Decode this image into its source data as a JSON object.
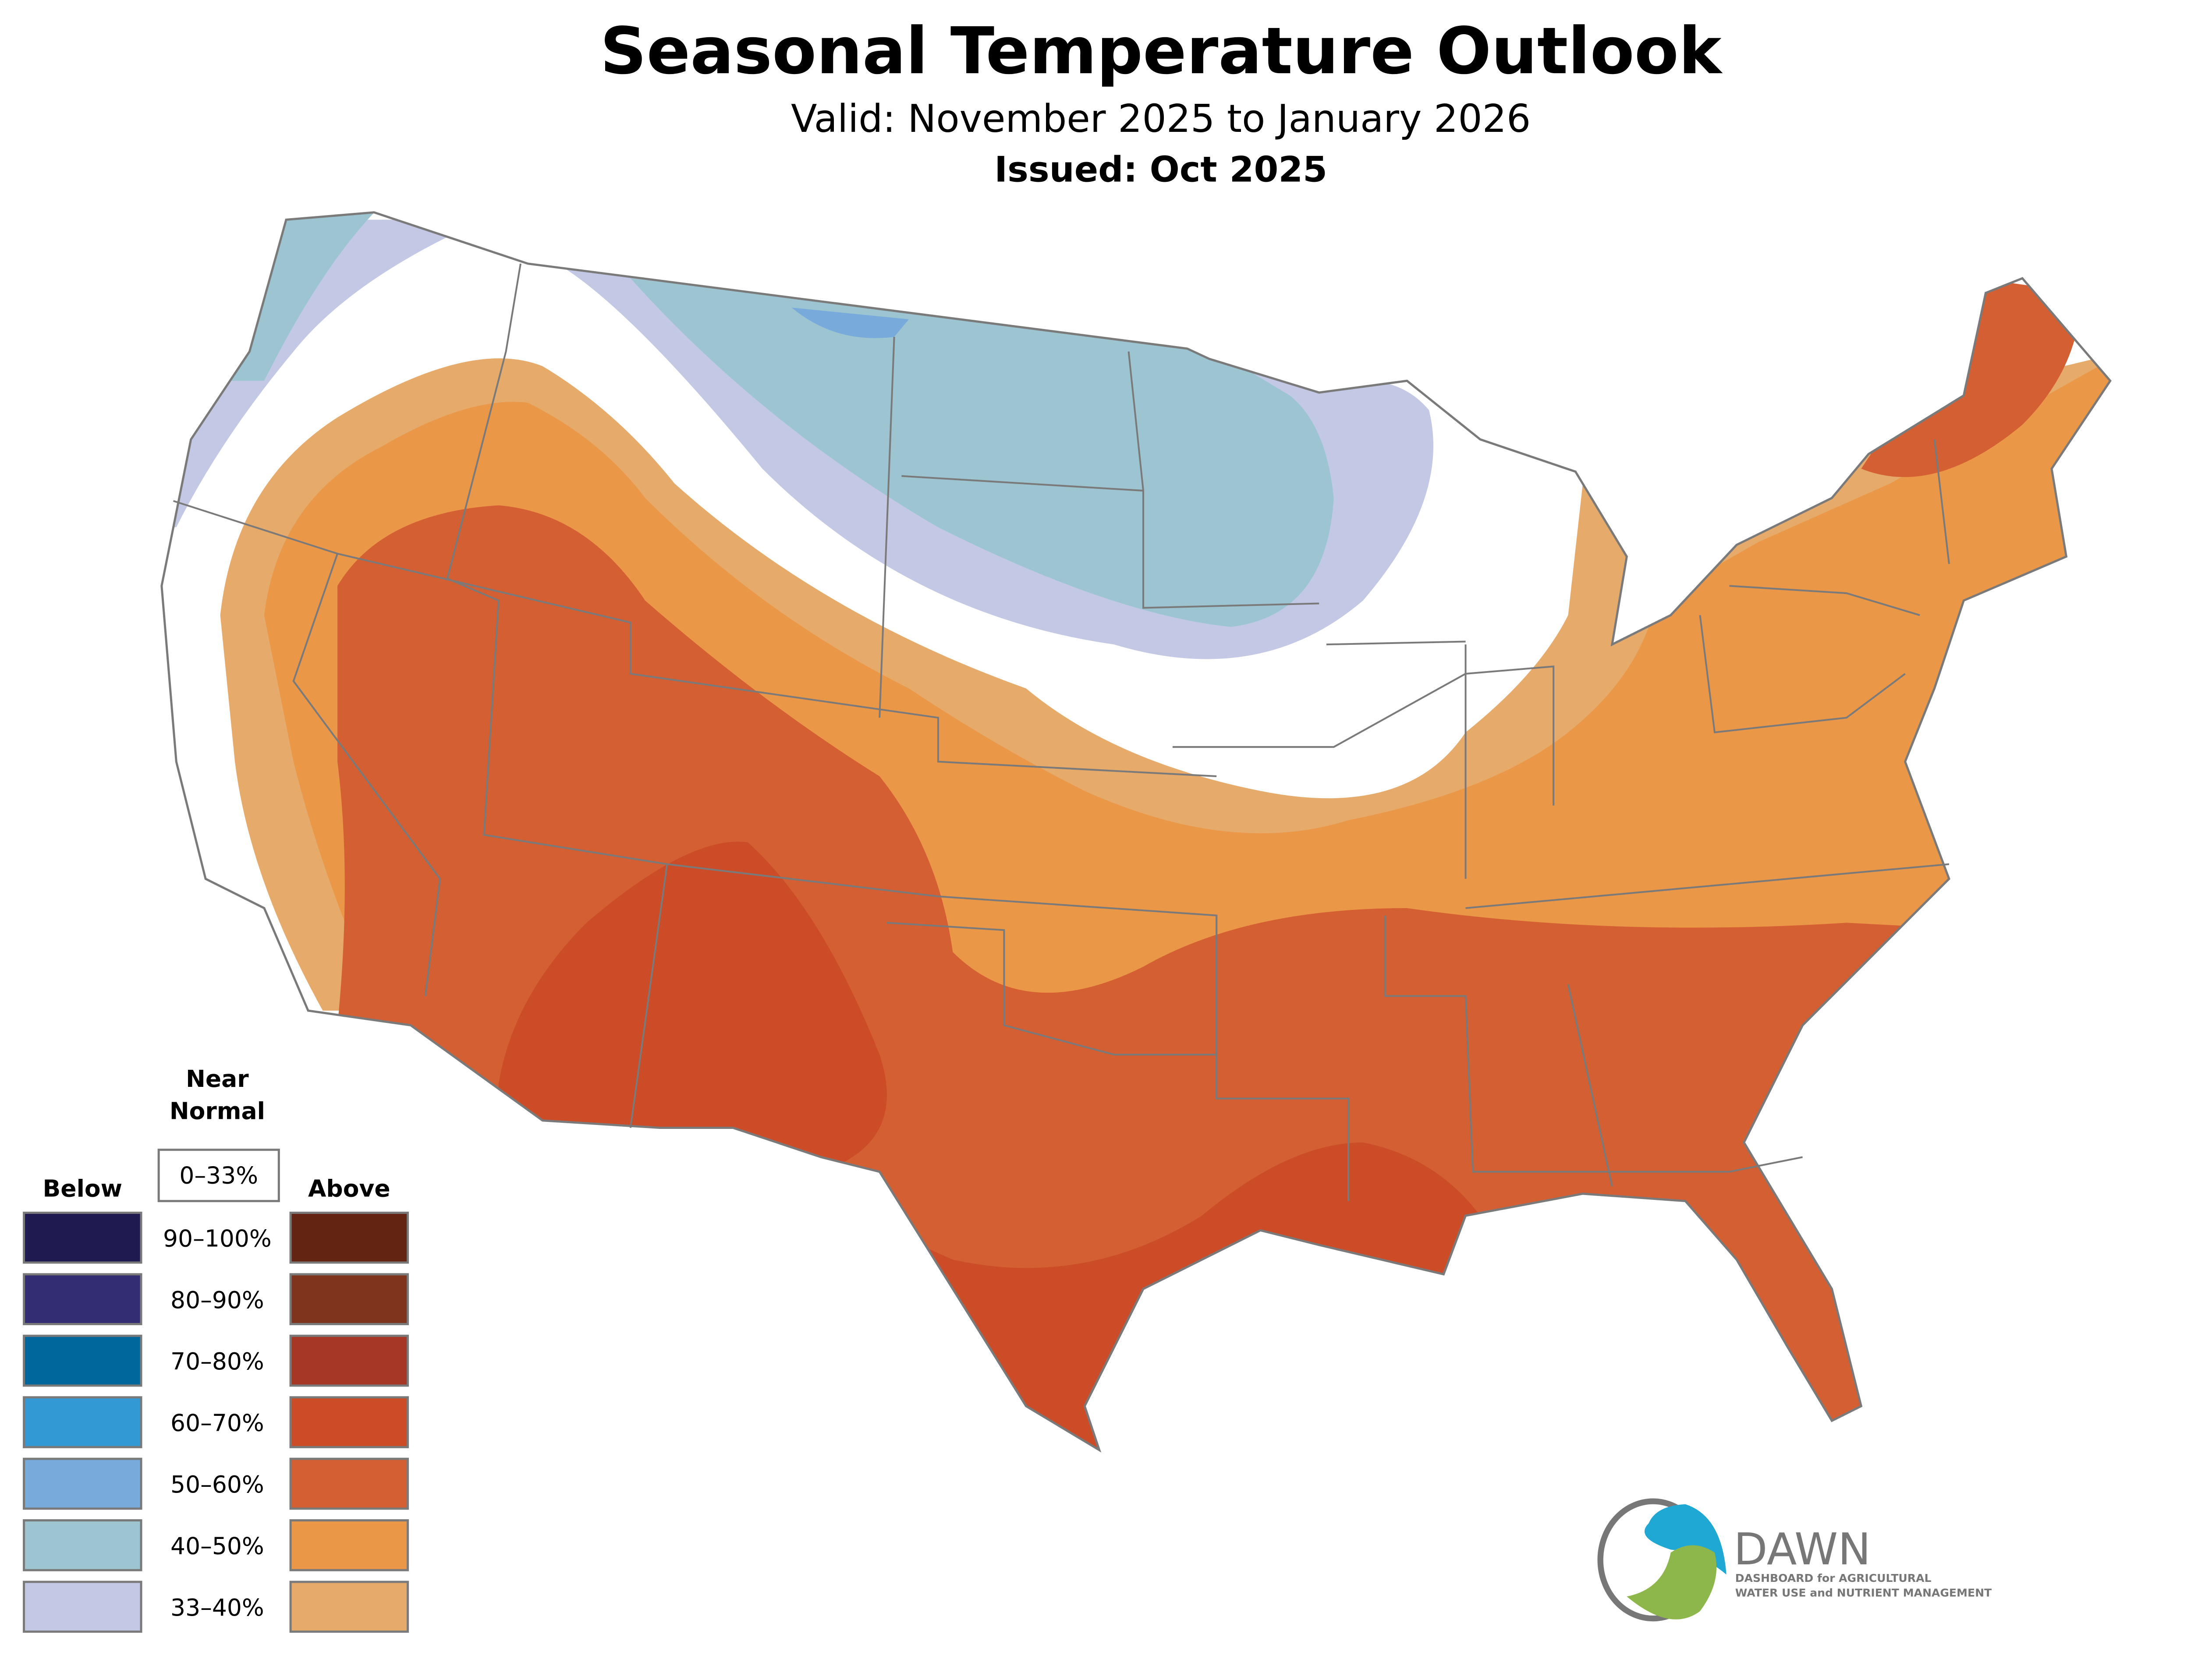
{
  "header": {
    "title": "Seasonal Temperature Outlook",
    "valid": "Valid: November 2025 to January 2026",
    "issued": "Issued: Oct 2025"
  },
  "legend": {
    "near_normal_line1": "Near",
    "near_normal_line2": "Normal",
    "near_normal_range": "0–33%",
    "below_label": "Below",
    "above_label": "Above",
    "rows": [
      {
        "range": "90–100%",
        "below_color": "#1f1a4f",
        "above_color": "#632412"
      },
      {
        "range": "80–90%",
        "below_color": "#332d74",
        "above_color": "#7f341d"
      },
      {
        "range": "70–80%",
        "below_color": "#00679d",
        "above_color": "#a63625"
      },
      {
        "range": "60–70%",
        "below_color": "#3399d4",
        "above_color": "#cc4c28"
      },
      {
        "range": "50–60%",
        "below_color": "#78aadb",
        "above_color": "#d35f33"
      },
      {
        "range": "40–50%",
        "below_color": "#9cc5d1",
        "above_color": "#eb9748"
      },
      {
        "range": "33–40%",
        "below_color": "#c3c9e4",
        "above_color": "#e6aa6a"
      }
    ]
  },
  "logo": {
    "name": "DAWN",
    "tagline_1": "DASHBOARD for AGRICULTURAL",
    "tagline_2": "WATER USE and NUTRIENT MANAGEMENT"
  }
}
